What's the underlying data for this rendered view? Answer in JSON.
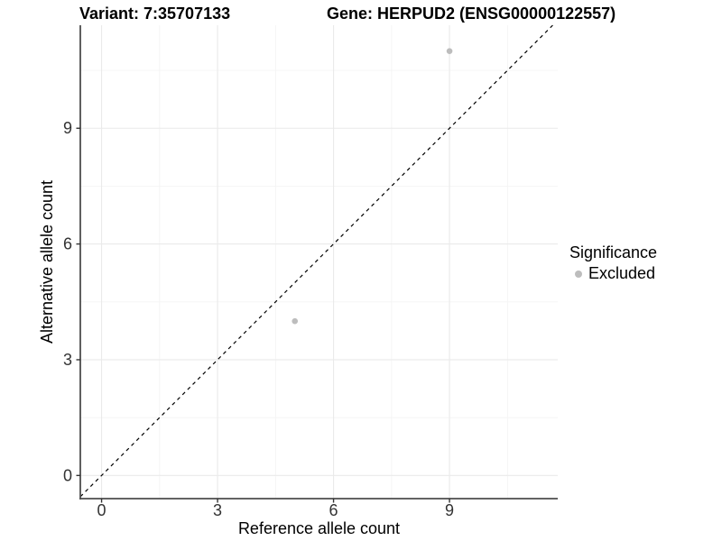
{
  "header": {
    "variant_title": "Variant: 7:35707133",
    "gene_title": "Gene: HERPUD2 (ENSG00000122557)"
  },
  "chart_data": {
    "type": "scatter",
    "xlabel": "Reference allele count",
    "ylabel": "Alternative allele count",
    "x_ticks": [
      0,
      3,
      6,
      9
    ],
    "y_ticks": [
      0,
      3,
      6,
      9
    ],
    "x_minor_breaks": [
      1.5,
      4.5,
      7.5,
      10.5
    ],
    "y_minor_breaks": [
      1.5,
      4.5,
      7.5,
      10.5
    ],
    "xlim": [
      -0.55,
      11.8
    ],
    "ylim": [
      -0.6,
      11.67
    ],
    "grid": true,
    "identity_line": {
      "slope": 1,
      "intercept": 0,
      "linetype": "dashed",
      "color": "#000000"
    },
    "series": [
      {
        "name": "Excluded",
        "color": "#bdbdbd",
        "points": [
          {
            "x": 5,
            "y": 4
          },
          {
            "x": 9,
            "y": 11
          }
        ]
      }
    ],
    "legend": {
      "title": "Significance",
      "position": "right",
      "entries": [
        {
          "label": "Excluded",
          "color": "#bdbdbd"
        }
      ]
    }
  },
  "colors": {
    "background": "#ffffff",
    "grid_major": "#eaeaea",
    "grid_minor": "#f4f4f4",
    "axis_line": "#4d4d4d",
    "tick_mark": "#333333",
    "tick_text": "#333333",
    "axis_title_text": "#000000",
    "point": "#bdbdbd"
  }
}
